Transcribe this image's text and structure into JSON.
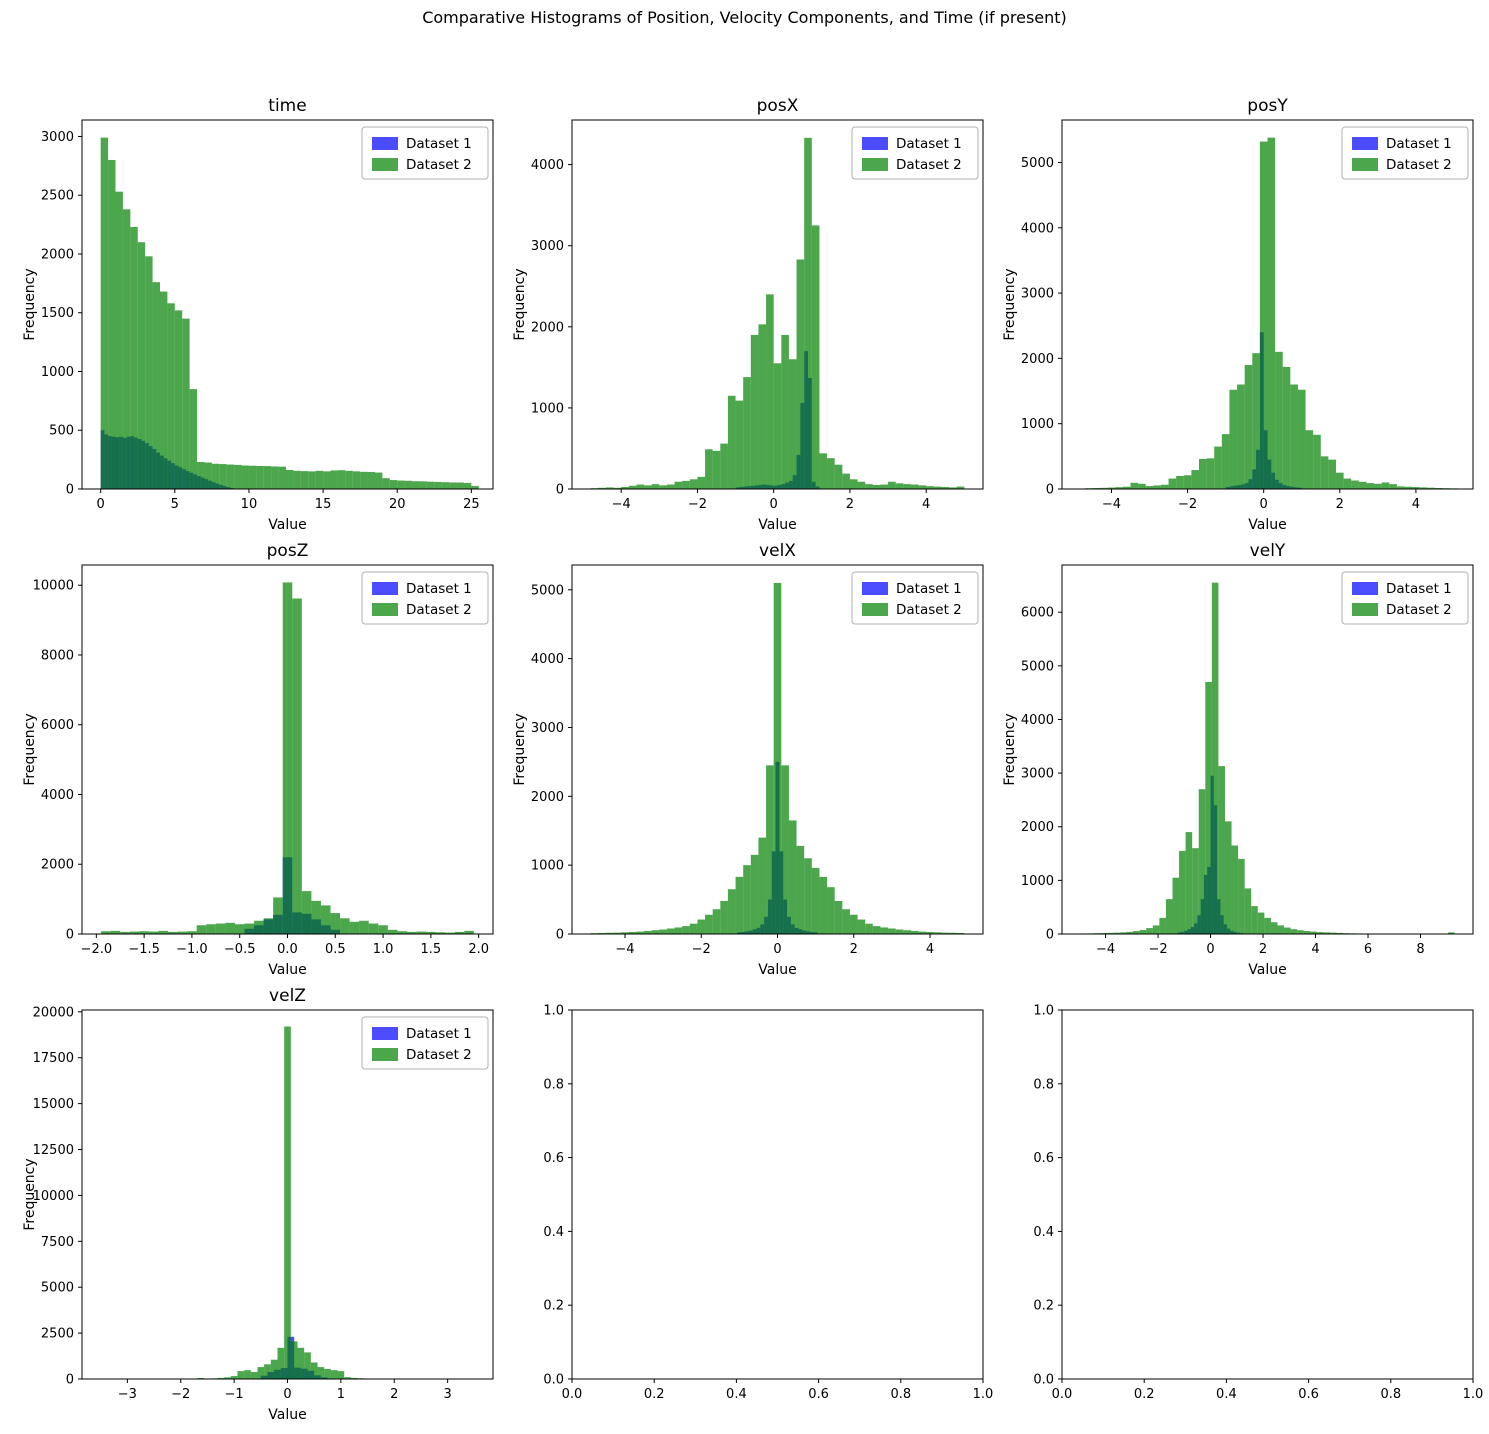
{
  "suptitle": "Comparative Histograms of Position, Velocity Components, and Time (if present)",
  "legend": {
    "labels": [
      "Dataset 1",
      "Dataset 2"
    ],
    "colors": [
      "rgba(0,0,255,0.7)",
      "rgba(0,128,0,0.7)"
    ]
  },
  "style": {
    "dataset1_fill": "rgba(0,0,255,0.7)",
    "dataset2_fill": "rgba(0,128,0,0.7)",
    "axis_color": "#000000",
    "legend_border": "#b0b0b0",
    "background": "#ffffff"
  },
  "chart_data": [
    {
      "type": "bar",
      "title": "time",
      "xlabel": "Value",
      "ylabel": "Frequency",
      "xlim": [
        -1.26,
        26.46
      ],
      "ylim": [
        0,
        3140
      ],
      "xticks": {
        "values": [
          0,
          5,
          10,
          15,
          20,
          25
        ],
        "labels": [
          "0",
          "5",
          "10",
          "15",
          "20",
          "25"
        ]
      },
      "yticks": {
        "values": [
          0,
          500,
          1000,
          1500,
          2000,
          2500,
          3000
        ],
        "labels": [
          "0",
          "500",
          "1000",
          "1500",
          "2000",
          "2500",
          "3000"
        ]
      },
      "series": [
        {
          "name": "Dataset 1",
          "x0": 0,
          "bin_width": 0.25,
          "values": [
            500,
            465,
            450,
            445,
            440,
            445,
            435,
            445,
            450,
            438,
            425,
            410,
            390,
            365,
            340,
            310,
            285,
            262,
            240,
            220,
            200,
            185,
            168,
            152,
            138,
            124,
            110,
            97,
            84,
            71,
            58,
            46,
            35,
            25,
            16,
            8
          ]
        },
        {
          "name": "Dataset 2",
          "x0": 0,
          "bin_width": 0.5,
          "values": [
            2990,
            2800,
            2530,
            2380,
            2230,
            2100,
            1980,
            1760,
            1680,
            1580,
            1520,
            1450,
            850,
            230,
            225,
            215,
            212,
            208,
            205,
            200,
            198,
            196,
            195,
            192,
            190,
            162,
            155,
            152,
            150,
            155,
            150,
            158,
            160,
            155,
            150,
            146,
            145,
            140,
            92,
            76,
            72,
            70,
            66,
            65,
            62,
            60,
            58,
            56,
            55,
            52,
            26
          ]
        }
      ]
    },
    {
      "type": "bar",
      "title": "posX",
      "xlabel": "Value",
      "ylabel": "Frequency",
      "xlim": [
        -5.29,
        5.49
      ],
      "ylim": [
        0,
        4550
      ],
      "xticks": {
        "values": [
          -4,
          -2,
          0,
          2,
          4
        ],
        "labels": [
          "−4",
          "−2",
          "0",
          "2",
          "4"
        ]
      },
      "yticks": {
        "values": [
          0,
          1000,
          2000,
          3000,
          4000
        ],
        "labels": [
          "0",
          "1000",
          "2000",
          "3000",
          "4000"
        ]
      },
      "series": [
        {
          "name": "Dataset 1",
          "x0": -1.0,
          "bin_width": 0.1,
          "values": [
            20,
            25,
            30,
            35,
            40,
            45,
            50,
            55,
            50,
            45,
            40,
            50,
            60,
            80,
            100,
            170,
            420,
            1060,
            1700,
            1370,
            90,
            30
          ]
        },
        {
          "name": "Dataset 2",
          "x0": -4.8,
          "bin_width": 0.2,
          "values": [
            10,
            15,
            20,
            15,
            25,
            40,
            55,
            45,
            60,
            45,
            55,
            90,
            100,
            120,
            150,
            490,
            470,
            560,
            1150,
            1090,
            1380,
            1900,
            2030,
            2400,
            1550,
            1900,
            1600,
            2830,
            4330,
            3250,
            440,
            380,
            300,
            190,
            120,
            90,
            60,
            50,
            55,
            90,
            70,
            60,
            55,
            45,
            35,
            30,
            25,
            20,
            30
          ]
        }
      ]
    },
    {
      "type": "bar",
      "title": "posY",
      "xlabel": "Value",
      "ylabel": "Frequency",
      "xlim": [
        -5.3,
        5.5
      ],
      "ylim": [
        0,
        5650
      ],
      "xticks": {
        "values": [
          -4,
          -2,
          0,
          2,
          4
        ],
        "labels": [
          "−4",
          "−2",
          "0",
          "2",
          "4"
        ]
      },
      "yticks": {
        "values": [
          0,
          1000,
          2000,
          3000,
          4000,
          5000
        ],
        "labels": [
          "0",
          "1000",
          "2000",
          "3000",
          "4000",
          "5000"
        ]
      },
      "series": [
        {
          "name": "Dataset 1",
          "x0": -1.0,
          "bin_width": 0.1,
          "values": [
            30,
            40,
            50,
            60,
            70,
            90,
            150,
            300,
            600,
            2400,
            900,
            450,
            250,
            140,
            90,
            60,
            45,
            35,
            25,
            20
          ]
        },
        {
          "name": "Dataset 2",
          "x0": -4.7,
          "bin_width": 0.2,
          "values": [
            12,
            15,
            18,
            22,
            28,
            35,
            95,
            80,
            45,
            55,
            65,
            160,
            200,
            210,
            290,
            460,
            470,
            650,
            840,
            1520,
            1600,
            1900,
            2080,
            5320,
            5380,
            2100,
            1870,
            1600,
            1520,
            900,
            830,
            500,
            450,
            250,
            160,
            130,
            110,
            90,
            80,
            100,
            75,
            40,
            35,
            30,
            25,
            20,
            15,
            12,
            10
          ]
        }
      ]
    },
    {
      "type": "bar",
      "title": "posZ",
      "xlabel": "Value",
      "ylabel": "Frequency",
      "xlim": [
        -2.15,
        2.15
      ],
      "ylim": [
        0,
        10580
      ],
      "xticks": {
        "values": [
          -2.0,
          -1.5,
          -1.0,
          -0.5,
          0.0,
          0.5,
          1.0,
          1.5,
          2.0
        ],
        "labels": [
          "−2.0",
          "−1.5",
          "−1.0",
          "−0.5",
          "0.0",
          "0.5",
          "1.0",
          "1.5",
          "2.0"
        ]
      },
      "yticks": {
        "values": [
          0,
          2000,
          4000,
          6000,
          8000,
          10000
        ],
        "labels": [
          "0",
          "2000",
          "4000",
          "6000",
          "8000",
          "10000"
        ]
      },
      "series": [
        {
          "name": "Dataset 1",
          "x0": -0.45,
          "bin_width": 0.1,
          "values": [
            150,
            250,
            420,
            550,
            2200,
            620,
            580,
            420,
            250,
            120
          ]
        },
        {
          "name": "Dataset 2",
          "x0": -1.95,
          "bin_width": 0.1,
          "values": [
            80,
            90,
            60,
            70,
            80,
            70,
            90,
            60,
            70,
            80,
            250,
            280,
            300,
            320,
            280,
            300,
            380,
            450,
            1050,
            10080,
            9620,
            1230,
            950,
            820,
            600,
            450,
            350,
            380,
            300,
            250,
            120,
            80,
            60,
            70,
            60,
            50,
            40,
            60,
            90
          ]
        }
      ]
    },
    {
      "type": "bar",
      "title": "velX",
      "xlabel": "Value",
      "ylabel": "Frequency",
      "xlim": [
        -5.39,
        5.39
      ],
      "ylim": [
        0,
        5360
      ],
      "xticks": {
        "values": [
          -4,
          -2,
          0,
          2,
          4
        ],
        "labels": [
          "−4",
          "−2",
          "0",
          "2",
          "4"
        ]
      },
      "yticks": {
        "values": [
          0,
          1000,
          2000,
          3000,
          4000,
          5000
        ],
        "labels": [
          "0",
          "1000",
          "2000",
          "3000",
          "4000",
          "5000"
        ]
      },
      "series": [
        {
          "name": "Dataset 1",
          "x0": -1.05,
          "bin_width": 0.1,
          "values": [
            25,
            30,
            40,
            50,
            70,
            90,
            140,
            250,
            500,
            1200,
            2500,
            1200,
            500,
            250,
            140,
            90,
            70,
            50,
            40,
            30,
            25
          ]
        },
        {
          "name": "Dataset 2",
          "x0": -4.9,
          "bin_width": 0.2,
          "values": [
            12,
            15,
            18,
            20,
            25,
            30,
            35,
            45,
            55,
            65,
            80,
            95,
            115,
            150,
            210,
            280,
            360,
            480,
            650,
            830,
            1000,
            1150,
            1400,
            2450,
            5100,
            2450,
            1650,
            1280,
            1100,
            960,
            830,
            680,
            480,
            360,
            280,
            210,
            150,
            115,
            95,
            80,
            65,
            55,
            45,
            35,
            30,
            25,
            20,
            18,
            15
          ]
        }
      ]
    },
    {
      "type": "bar",
      "title": "velY",
      "xlabel": "Value",
      "ylabel": "Frequency",
      "xlim": [
        -5.66,
        10.0
      ],
      "ylim": [
        0,
        6880
      ],
      "xticks": {
        "values": [
          -4,
          -2,
          0,
          2,
          4,
          6,
          8
        ],
        "labels": [
          "−4",
          "−2",
          "0",
          "2",
          "4",
          "6",
          "8"
        ]
      },
      "yticks": {
        "values": [
          0,
          1000,
          2000,
          3000,
          4000,
          5000,
          6000
        ],
        "labels": [
          "0",
          "1000",
          "2000",
          "3000",
          "4000",
          "5000",
          "6000"
        ]
      },
      "series": [
        {
          "name": "Dataset 1",
          "x0": -1.25,
          "bin_width": 0.125,
          "values": [
            30,
            40,
            60,
            90,
            130,
            200,
            350,
            650,
            1100,
            1250,
            2950,
            2400,
            650,
            350,
            180,
            100,
            60,
            40,
            25,
            15
          ]
        },
        {
          "name": "Dataset 2",
          "x0": -4.95,
          "bin_width": 0.25,
          "values": [
            10,
            12,
            15,
            18,
            22,
            25,
            30,
            40,
            55,
            75,
            110,
            160,
            300,
            650,
            1050,
            1550,
            1900,
            1600,
            2700,
            4700,
            6550,
            3130,
            2100,
            1650,
            1400,
            850,
            520,
            400,
            300,
            220,
            160,
            120,
            90,
            70,
            55,
            45,
            35,
            30,
            25,
            20,
            15,
            12,
            10,
            8,
            6,
            5,
            4,
            3,
            3,
            2,
            2,
            2,
            1,
            1,
            1,
            3,
            30
          ]
        }
      ]
    },
    {
      "type": "bar",
      "title": "velZ",
      "xlabel": "Value",
      "ylabel": "Frequency",
      "xlim": [
        -3.85,
        3.85
      ],
      "ylim": [
        0,
        20100
      ],
      "xticks": {
        "values": [
          -3,
          -2,
          -1,
          0,
          1,
          2,
          3
        ],
        "labels": [
          "−3",
          "−2",
          "−1",
          "0",
          "1",
          "2",
          "3"
        ]
      },
      "yticks": {
        "values": [
          0,
          2500,
          5000,
          7500,
          10000,
          12500,
          15000,
          17500,
          20000
        ],
        "labels": [
          "0",
          "2500",
          "5000",
          "7500",
          "10000",
          "12500",
          "15000",
          "17500",
          "20000"
        ]
      },
      "series": [
        {
          "name": "Dataset 1",
          "x0": -0.5,
          "bin_width": 0.125,
          "values": [
            180,
            380,
            500,
            600,
            2300,
            620,
            560,
            450,
            200,
            90
          ]
        },
        {
          "name": "Dataset 2",
          "x0": -1.8125,
          "bin_width": 0.125,
          "values": [
            15,
            55,
            25,
            35,
            60,
            90,
            160,
            430,
            480,
            380,
            650,
            800,
            1050,
            1700,
            19200,
            2050,
            1700,
            1450,
            900,
            650,
            550,
            480,
            430,
            100,
            60,
            40,
            20
          ]
        }
      ]
    },
    {
      "type": "bar",
      "title": "",
      "empty": true,
      "xlim": [
        0,
        1
      ],
      "ylim": [
        0,
        1
      ],
      "xticks": {
        "values": [
          0,
          0.2,
          0.4,
          0.6,
          0.8,
          1.0
        ],
        "labels": [
          "0.0",
          "0.2",
          "0.4",
          "0.6",
          "0.8",
          "1.0"
        ]
      },
      "yticks": {
        "values": [
          0,
          0.2,
          0.4,
          0.6,
          0.8,
          1.0
        ],
        "labels": [
          "0.0",
          "0.2",
          "0.4",
          "0.6",
          "0.8",
          "1.0"
        ]
      }
    },
    {
      "type": "bar",
      "title": "",
      "empty": true,
      "xlim": [
        0,
        1
      ],
      "ylim": [
        0,
        1
      ],
      "xticks": {
        "values": [
          0,
          0.2,
          0.4,
          0.6,
          0.8,
          1.0
        ],
        "labels": [
          "0.0",
          "0.2",
          "0.4",
          "0.6",
          "0.8",
          "1.0"
        ]
      },
      "yticks": {
        "values": [
          0,
          0.2,
          0.4,
          0.6,
          0.8,
          1.0
        ],
        "labels": [
          "0.0",
          "0.2",
          "0.4",
          "0.6",
          "0.8",
          "1.0"
        ]
      }
    }
  ]
}
